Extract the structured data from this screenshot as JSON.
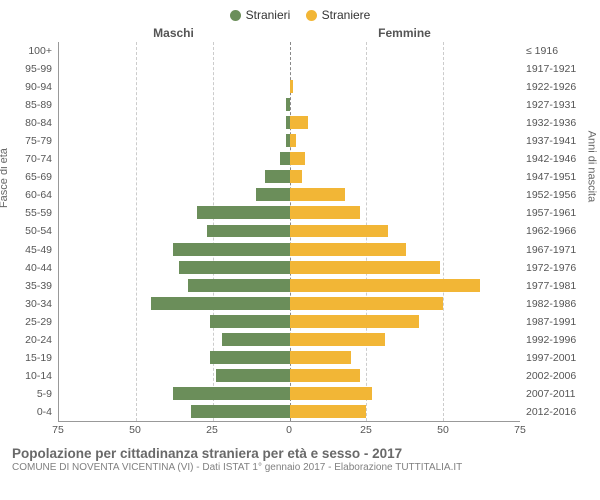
{
  "chart": {
    "type": "population-pyramid",
    "legend": {
      "male": {
        "label": "Stranieri",
        "color": "#6b8e5a"
      },
      "female": {
        "label": "Straniere",
        "color": "#f2b636"
      }
    },
    "header_left": "Maschi",
    "header_right": "Femmine",
    "ylabel_left": "Fasce di età",
    "ylabel_right": "Anni di nascita",
    "xmax": 75,
    "xticks": [
      75,
      50,
      25,
      0,
      25,
      50,
      75
    ],
    "grid_color": "#cccccc",
    "axis_color": "#999999",
    "background_color": "#ffffff",
    "bar_height_ratio": 0.72,
    "rows": [
      {
        "age": "100+",
        "birth": "≤ 1916",
        "m": 0,
        "f": 0
      },
      {
        "age": "95-99",
        "birth": "1917-1921",
        "m": 0,
        "f": 0
      },
      {
        "age": "90-94",
        "birth": "1922-1926",
        "m": 0,
        "f": 1
      },
      {
        "age": "85-89",
        "birth": "1927-1931",
        "m": 1,
        "f": 0
      },
      {
        "age": "80-84",
        "birth": "1932-1936",
        "m": 1,
        "f": 6
      },
      {
        "age": "75-79",
        "birth": "1937-1941",
        "m": 1,
        "f": 2
      },
      {
        "age": "70-74",
        "birth": "1942-1946",
        "m": 3,
        "f": 5
      },
      {
        "age": "65-69",
        "birth": "1947-1951",
        "m": 8,
        "f": 4
      },
      {
        "age": "60-64",
        "birth": "1952-1956",
        "m": 11,
        "f": 18
      },
      {
        "age": "55-59",
        "birth": "1957-1961",
        "m": 30,
        "f": 23
      },
      {
        "age": "50-54",
        "birth": "1962-1966",
        "m": 27,
        "f": 32
      },
      {
        "age": "45-49",
        "birth": "1967-1971",
        "m": 38,
        "f": 38
      },
      {
        "age": "40-44",
        "birth": "1972-1976",
        "m": 36,
        "f": 49
      },
      {
        "age": "35-39",
        "birth": "1977-1981",
        "m": 33,
        "f": 62
      },
      {
        "age": "30-34",
        "birth": "1982-1986",
        "m": 45,
        "f": 50
      },
      {
        "age": "25-29",
        "birth": "1987-1991",
        "m": 26,
        "f": 42
      },
      {
        "age": "20-24",
        "birth": "1992-1996",
        "m": 22,
        "f": 31
      },
      {
        "age": "15-19",
        "birth": "1997-2001",
        "m": 26,
        "f": 20
      },
      {
        "age": "10-14",
        "birth": "2002-2006",
        "m": 24,
        "f": 23
      },
      {
        "age": "5-9",
        "birth": "2007-2011",
        "m": 38,
        "f": 27
      },
      {
        "age": "0-4",
        "birth": "2012-2016",
        "m": 32,
        "f": 25
      }
    ]
  },
  "footer": {
    "title": "Popolazione per cittadinanza straniera per età e sesso - 2017",
    "subtitle": "COMUNE DI NOVENTA VICENTINA (VI) - Dati ISTAT 1° gennaio 2017 - Elaborazione TUTTITALIA.IT"
  }
}
